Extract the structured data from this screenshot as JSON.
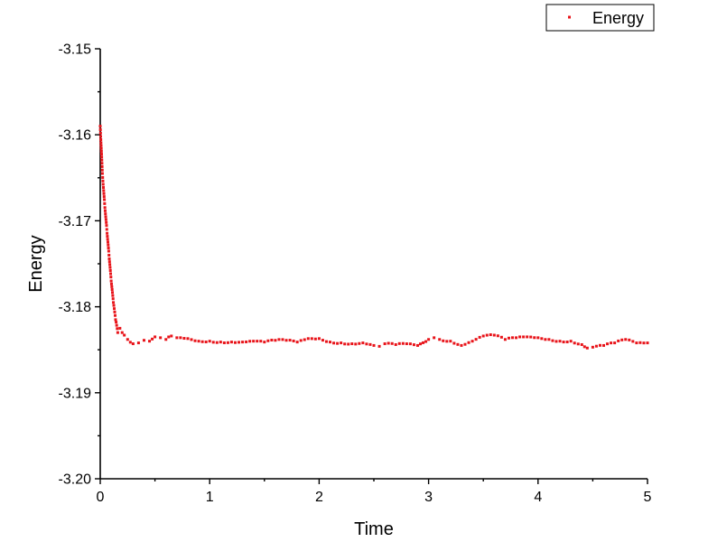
{
  "chart_data": {
    "type": "scatter",
    "title": "",
    "xlabel": "Time",
    "ylabel": "Energy",
    "xlim": [
      0,
      5
    ],
    "ylim": [
      -3.2,
      -3.15
    ],
    "xticks": [
      0,
      1,
      2,
      3,
      4,
      5
    ],
    "xtick_labels": [
      "0",
      "1",
      "2",
      "3",
      "4",
      "5"
    ],
    "yticks": [
      -3.2,
      -3.19,
      -3.18,
      -3.17,
      -3.16,
      -3.15
    ],
    "ytick_labels": [
      "-3.20",
      "-3.19",
      "-3.18",
      "-3.17",
      "-3.16",
      "-3.15"
    ],
    "grid": false,
    "legend": {
      "position": "top-right"
    },
    "series": [
      {
        "name": "Energy",
        "color": "#e8141a",
        "marker": "square",
        "x": [
          0,
          0.02,
          0.04,
          0.06,
          0.08,
          0.1,
          0.12,
          0.14,
          0.16,
          0.18,
          0.2,
          0.22,
          0.25,
          0.3,
          0.35,
          0.4,
          0.45,
          0.5,
          0.55,
          0.6,
          0.65,
          0.7,
          0.8,
          0.9,
          1.0,
          1.1,
          1.2,
          1.3,
          1.4,
          1.5,
          1.6,
          1.7,
          1.8,
          1.9,
          2.0,
          2.1,
          2.2,
          2.3,
          2.4,
          2.5,
          2.55,
          2.6,
          2.7,
          2.8,
          2.9,
          3.0,
          3.05,
          3.1,
          3.2,
          3.3,
          3.4,
          3.5,
          3.6,
          3.7,
          3.8,
          3.9,
          4.0,
          4.1,
          4.2,
          4.3,
          4.4,
          4.45,
          4.5,
          4.6,
          4.7,
          4.8,
          4.9,
          5.0
        ],
        "y": [
          -3.159,
          -3.1645,
          -3.168,
          -3.171,
          -3.174,
          -3.177,
          -3.1795,
          -3.1815,
          -3.183,
          -3.1825,
          -3.183,
          -3.1833,
          -3.1838,
          -3.1843,
          -3.1842,
          -3.1839,
          -3.184,
          -3.1835,
          -3.1836,
          -3.1838,
          -3.1834,
          -3.1836,
          -3.1837,
          -3.184,
          -3.184,
          -3.1841,
          -3.1841,
          -3.1841,
          -3.184,
          -3.1841,
          -3.1839,
          -3.1839,
          -3.1841,
          -3.1837,
          -3.1837,
          -3.1841,
          -3.1842,
          -3.1843,
          -3.1842,
          -3.1845,
          -3.1846,
          -3.1843,
          -3.1844,
          -3.1843,
          -3.1845,
          -3.1838,
          -3.1836,
          -3.1838,
          -3.184,
          -3.1845,
          -3.184,
          -3.1834,
          -3.1833,
          -3.1838,
          -3.1836,
          -3.1835,
          -3.1836,
          -3.1838,
          -3.184,
          -3.184,
          -3.1844,
          -3.1848,
          -3.1847,
          -3.1845,
          -3.1842,
          -3.1838,
          -3.1842,
          -3.1842
        ]
      }
    ]
  }
}
